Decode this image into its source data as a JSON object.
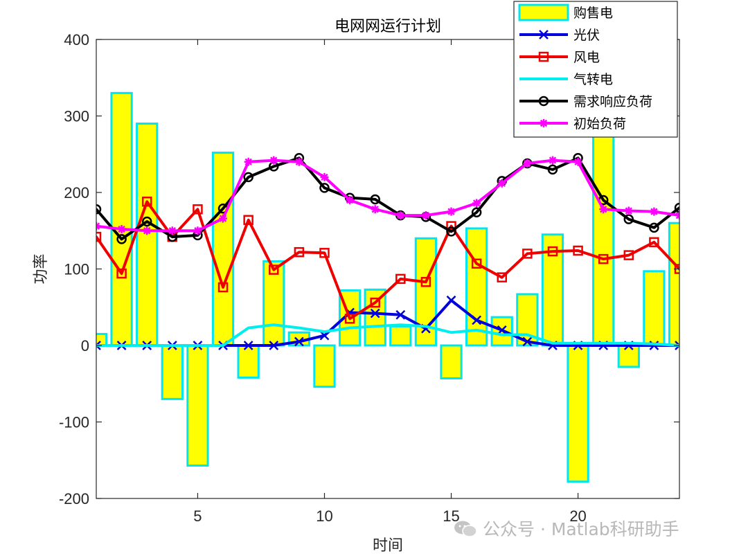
{
  "chart_data": {
    "type": "bar+line",
    "title": "电网网运行计划",
    "xlabel": "时间",
    "ylabel": "功率",
    "xlim": [
      1,
      24
    ],
    "ylim": [
      -200,
      400
    ],
    "xticks": [
      5,
      10,
      15,
      20
    ],
    "yticks": [
      -200,
      -100,
      0,
      100,
      200,
      300,
      400
    ],
    "legend_position": "top-right",
    "x": [
      1,
      2,
      3,
      4,
      5,
      6,
      7,
      8,
      9,
      10,
      11,
      12,
      13,
      14,
      15,
      16,
      17,
      18,
      19,
      20,
      21,
      22,
      23,
      24
    ],
    "series": [
      {
        "name": "购售电",
        "type": "bar",
        "color": "#ffff00",
        "edge": "#00e5ee",
        "values": [
          15,
          330,
          290,
          -70,
          -157,
          252,
          -42,
          110,
          17,
          -54,
          72,
          73,
          25,
          140,
          -43,
          153,
          37,
          67,
          145,
          -178,
          285,
          -28,
          97,
          160
        ]
      },
      {
        "name": "光伏",
        "type": "line",
        "marker": "x",
        "color": "#0000dd",
        "values": [
          0,
          0,
          0,
          0,
          0,
          0,
          0,
          0,
          5,
          13,
          43,
          42,
          40,
          22,
          59,
          33,
          20,
          5,
          0,
          0,
          0,
          0,
          0,
          0
        ]
      },
      {
        "name": "风电",
        "type": "line",
        "marker": "square",
        "color": "#ee0000",
        "values": [
          142,
          94,
          188,
          142,
          178,
          76,
          164,
          99,
          122,
          121,
          35,
          56,
          87,
          83,
          156,
          107,
          89,
          120,
          123,
          124,
          113,
          118,
          135,
          100
        ]
      },
      {
        "name": "气转电",
        "type": "line",
        "marker": "none",
        "color": "#00eeee",
        "values": [
          0,
          0,
          0,
          0,
          0,
          0,
          23,
          27,
          23,
          18,
          23,
          25,
          27,
          25,
          17,
          20,
          14,
          14,
          3,
          3,
          3,
          3,
          2,
          0
        ]
      },
      {
        "name": "需求响应负荷",
        "type": "line",
        "marker": "circle",
        "color": "#000000",
        "values": [
          178,
          139,
          162,
          142,
          144,
          179,
          220,
          234,
          245,
          206,
          193,
          191,
          170,
          168,
          149,
          174,
          215,
          238,
          230,
          245,
          190,
          165,
          154,
          180
        ]
      },
      {
        "name": "初始负荷",
        "type": "line",
        "marker": "asterisk",
        "color": "#ff00ff",
        "values": [
          156,
          152,
          150,
          150,
          150,
          166,
          240,
          242,
          240,
          220,
          190,
          178,
          170,
          170,
          175,
          186,
          212,
          238,
          242,
          240,
          178,
          176,
          175,
          170
        ]
      }
    ]
  },
  "watermark": "公众号 · Matlab科研助手"
}
